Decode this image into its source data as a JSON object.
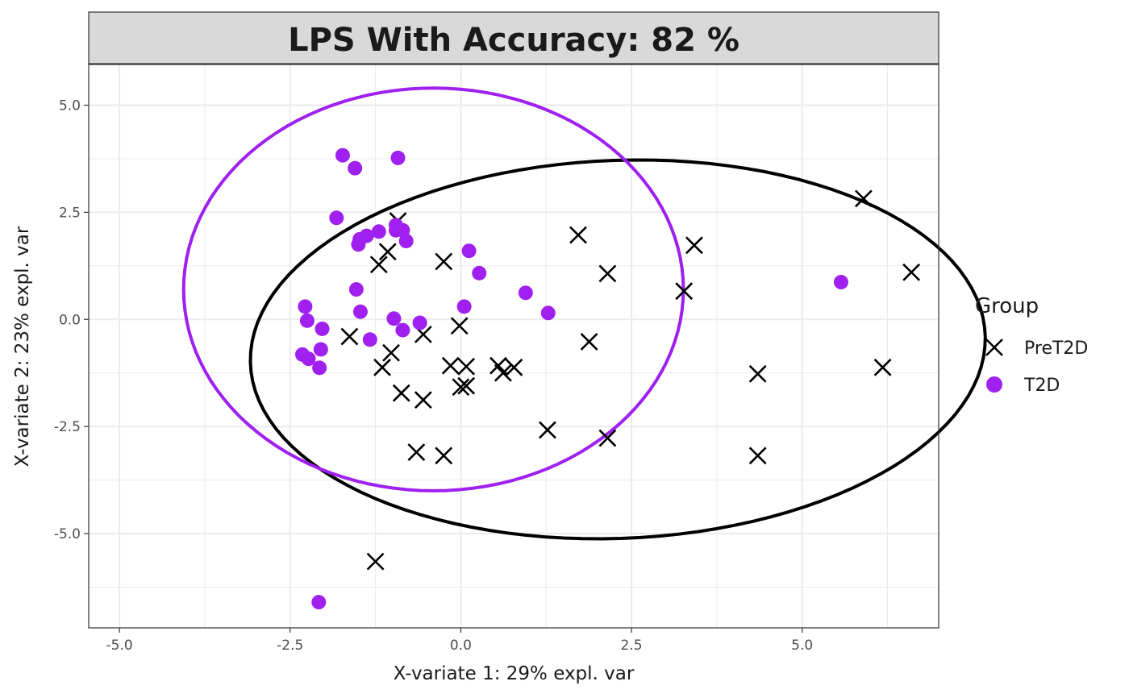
{
  "chart_data": {
    "type": "scatter",
    "title": "LPS With Accuracy: 82 %",
    "xlabel": "X-variate 1: 29% expl. var",
    "ylabel": "X-variate 2: 23% expl. var",
    "xlim": [
      -5.45,
      7.0
    ],
    "ylim": [
      -7.2,
      5.95
    ],
    "x_ticks": [
      -5.0,
      -2.5,
      0.0,
      2.5,
      5.0
    ],
    "x_tick_labels": [
      "-5.0",
      "-2.5",
      "0.0",
      "2.5",
      "5.0"
    ],
    "y_ticks": [
      5.0,
      2.5,
      0.0,
      -2.5,
      -5.0
    ],
    "y_tick_labels": [
      "5.0",
      "2.5",
      "0.0",
      "-2.5",
      "-5.0"
    ],
    "grid": true,
    "legend": {
      "title": "Group",
      "position": "right"
    },
    "series": [
      {
        "name": "PreT2D",
        "color": "#000000",
        "marker": "x",
        "points": [
          [
            -1.63,
            -0.4
          ],
          [
            -1.2,
            1.28
          ],
          [
            -1.07,
            1.58
          ],
          [
            -0.92,
            2.3
          ],
          [
            -1.15,
            -1.12
          ],
          [
            -1.02,
            -0.78
          ],
          [
            -0.87,
            -1.72
          ],
          [
            -0.55,
            -1.88
          ],
          [
            -0.55,
            -0.35
          ],
          [
            -0.25,
            1.35
          ],
          [
            -0.02,
            -0.15
          ],
          [
            -0.15,
            -1.08
          ],
          [
            0.08,
            -1.1
          ],
          [
            0.0,
            -1.58
          ],
          [
            0.08,
            -1.55
          ],
          [
            0.55,
            -1.08
          ],
          [
            0.62,
            -1.25
          ],
          [
            0.78,
            -1.12
          ],
          [
            -0.65,
            -3.1
          ],
          [
            -0.25,
            -3.18
          ],
          [
            -1.25,
            -5.65
          ],
          [
            1.27,
            -2.58
          ],
          [
            1.72,
            1.97
          ],
          [
            1.88,
            -0.52
          ],
          [
            2.15,
            1.07
          ],
          [
            2.15,
            -2.77
          ],
          [
            3.27,
            0.66
          ],
          [
            3.42,
            1.73
          ],
          [
            4.35,
            -1.27
          ],
          [
            4.35,
            -3.18
          ],
          [
            5.9,
            2.82
          ],
          [
            6.6,
            1.1
          ],
          [
            6.18,
            -1.12
          ]
        ],
        "ellipse": {
          "cx": 2.3,
          "cy": -0.7,
          "rx": 5.4,
          "ry": 4.4,
          "angle_deg": 8
        }
      },
      {
        "name": "T2D",
        "color": "#a020f0",
        "marker": "circle",
        "points": [
          [
            -1.73,
            3.83
          ],
          [
            -1.55,
            3.53
          ],
          [
            -0.92,
            3.77
          ],
          [
            -1.82,
            2.37
          ],
          [
            -0.95,
            2.2
          ],
          [
            -0.95,
            2.08
          ],
          [
            -0.85,
            2.08
          ],
          [
            -1.2,
            2.05
          ],
          [
            -1.38,
            1.95
          ],
          [
            -1.48,
            1.87
          ],
          [
            -1.5,
            1.75
          ],
          [
            -0.8,
            1.83
          ],
          [
            0.12,
            1.6
          ],
          [
            0.27,
            1.08
          ],
          [
            -1.53,
            0.7
          ],
          [
            0.95,
            0.62
          ],
          [
            -2.28,
            0.3
          ],
          [
            0.05,
            0.3
          ],
          [
            -1.47,
            0.18
          ],
          [
            1.28,
            0.15
          ],
          [
            -2.25,
            -0.03
          ],
          [
            -0.98,
            0.02
          ],
          [
            -0.6,
            -0.08
          ],
          [
            -2.03,
            -0.22
          ],
          [
            -0.85,
            -0.25
          ],
          [
            -1.33,
            -0.47
          ],
          [
            -2.05,
            -0.7
          ],
          [
            -2.32,
            -0.82
          ],
          [
            -2.23,
            -0.92
          ],
          [
            -2.07,
            -1.13
          ],
          [
            5.57,
            0.87
          ],
          [
            -2.08,
            -6.6
          ]
        ],
        "ellipse": {
          "cx": -0.4,
          "cy": 0.7,
          "rx": 3.66,
          "ry": 4.7,
          "angle_deg": 0
        }
      }
    ]
  }
}
